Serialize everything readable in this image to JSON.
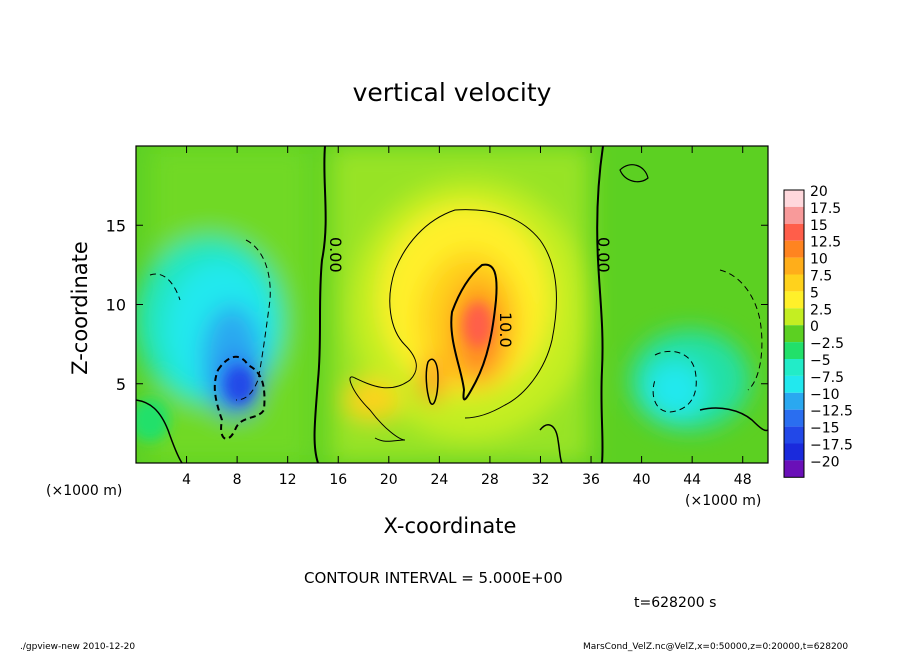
{
  "chart_data": {
    "type": "heatmap",
    "title": "vertical velocity",
    "xlabel": "X-coordinate",
    "ylabel": "Z-coordinate",
    "x_unit_label": "(×1000 m)",
    "xlim": [
      0,
      50
    ],
    "ylim": [
      0,
      20
    ],
    "x_ticks": [
      "4",
      "8",
      "12",
      "16",
      "20",
      "24",
      "28",
      "32",
      "36",
      "40",
      "44",
      "48"
    ],
    "y_ticks": [
      "5",
      "10",
      "15"
    ],
    "colorbar": {
      "labels": [
        "20",
        "17.5",
        "15",
        "12.5",
        "10",
        "7.5",
        "5",
        "2.5",
        "0",
        "−2.5",
        "−5",
        "−7.5",
        "−10",
        "−12.5",
        "−15",
        "−17.5",
        "−20"
      ],
      "colors": [
        "#ffd8dc",
        "#f89a9a",
        "#ff5e4a",
        "#ff8420",
        "#ffae1a",
        "#ffd21c",
        "#fff02a",
        "#c4ee22",
        "#5cd022",
        "#22e06a",
        "#22ecc8",
        "#22e8ee",
        "#2aa8f0",
        "#2a6ef0",
        "#2248e8",
        "#1a2adc",
        "#6a10b8"
      ]
    },
    "contour_labels": [
      "0.00",
      "10.0",
      "0.00"
    ],
    "contour_interval": "CONTOUR INTERVAL = 5.000E+00",
    "time_label": "t=628200 s",
    "features": [
      {
        "name": "updraft core",
        "x": 27.5,
        "z": 9,
        "value": 13
      },
      {
        "name": "downdraft core",
        "x": 8,
        "z": 6,
        "value": -12
      }
    ]
  },
  "footer": {
    "left": "./gpview-new  2010-12-20",
    "right": "MarsCond_VelZ.nc@VelZ,x=0:50000,z=0:20000,t=628200"
  }
}
